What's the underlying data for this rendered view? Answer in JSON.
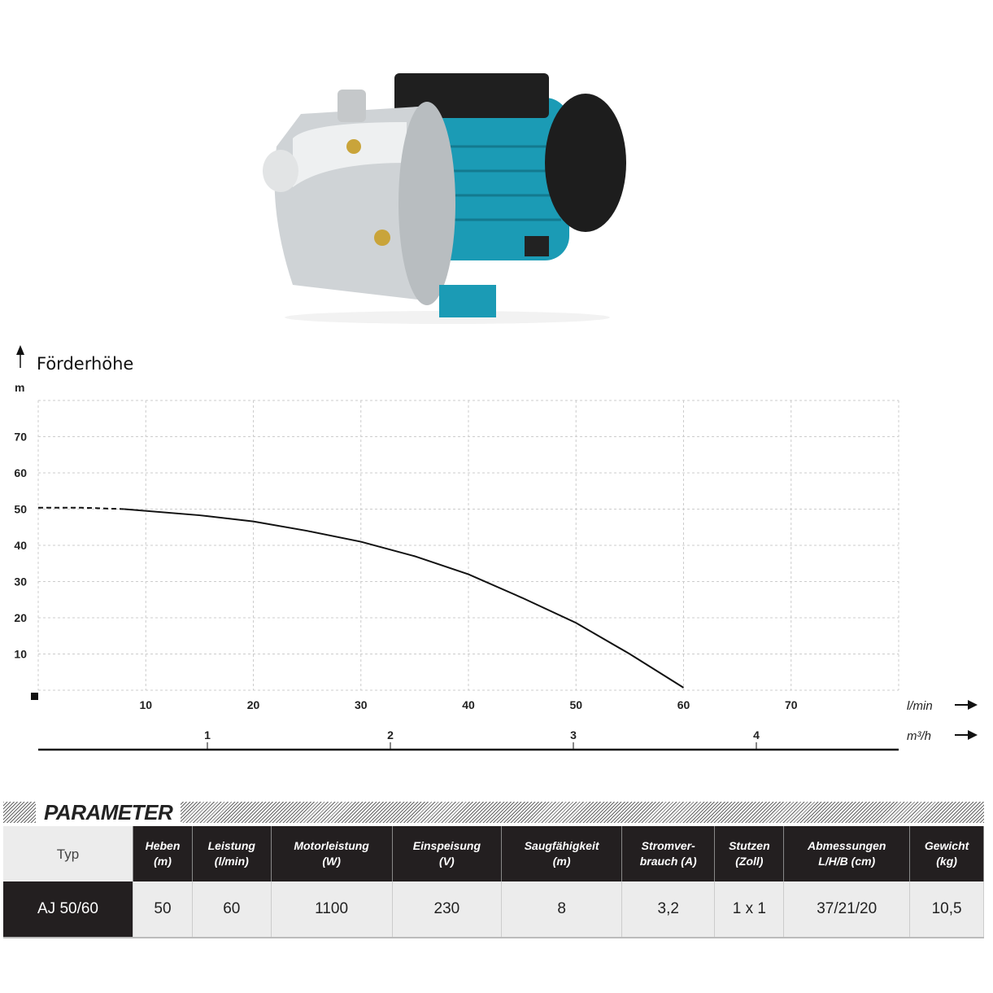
{
  "product_image": {
    "description_icon": "pump-icon",
    "colors": {
      "motor": "#1b9bb5",
      "housing": "#c8c8c8",
      "cap": "#1d1d1d"
    }
  },
  "chart_data": {
    "type": "line",
    "title": "Förderhöhe",
    "ylabel": "m",
    "xlabel": "l/min",
    "x2label": "m³/h",
    "xlim": [
      0,
      80
    ],
    "ylim": [
      0,
      80
    ],
    "grid": true,
    "yticks": [
      10,
      20,
      30,
      40,
      50,
      60,
      70
    ],
    "xticks": [
      10,
      20,
      30,
      40,
      50,
      60,
      70
    ],
    "x2ticks": [
      1,
      2,
      3,
      4
    ],
    "series": [
      {
        "dashed_segment": {
          "x": [
            0,
            4,
            8
          ],
          "y": [
            50.4,
            50.4,
            50
          ]
        },
        "x": [
          8,
          15,
          20,
          25,
          30,
          35,
          40,
          45,
          50,
          55,
          60
        ],
        "y": [
          50,
          48.3,
          46.6,
          44,
          41,
          37,
          32,
          25.5,
          18.6,
          10,
          0.7
        ]
      }
    ]
  },
  "parameter": {
    "title": "PARAMETER",
    "headers": [
      [
        "Typ"
      ],
      [
        "Heben",
        "(m)"
      ],
      [
        "Leistung",
        "(l/min)"
      ],
      [
        "Motorleistung",
        "(W)"
      ],
      [
        "Einspeisung",
        "(V)"
      ],
      [
        "Saugfähigkeit",
        "(m)"
      ],
      [
        "Stromver-",
        "brauch (A)"
      ],
      [
        "Stutzen",
        "(Zoll)"
      ],
      [
        "Abmessungen",
        "L/H/B (cm)"
      ],
      [
        "Gewicht",
        "(kg)"
      ]
    ],
    "rows": [
      [
        "AJ 50/60",
        "50",
        "60",
        "1100",
        "230",
        "8",
        "3,2",
        "1 x 1",
        "37/21/20",
        "10,5"
      ]
    ]
  }
}
